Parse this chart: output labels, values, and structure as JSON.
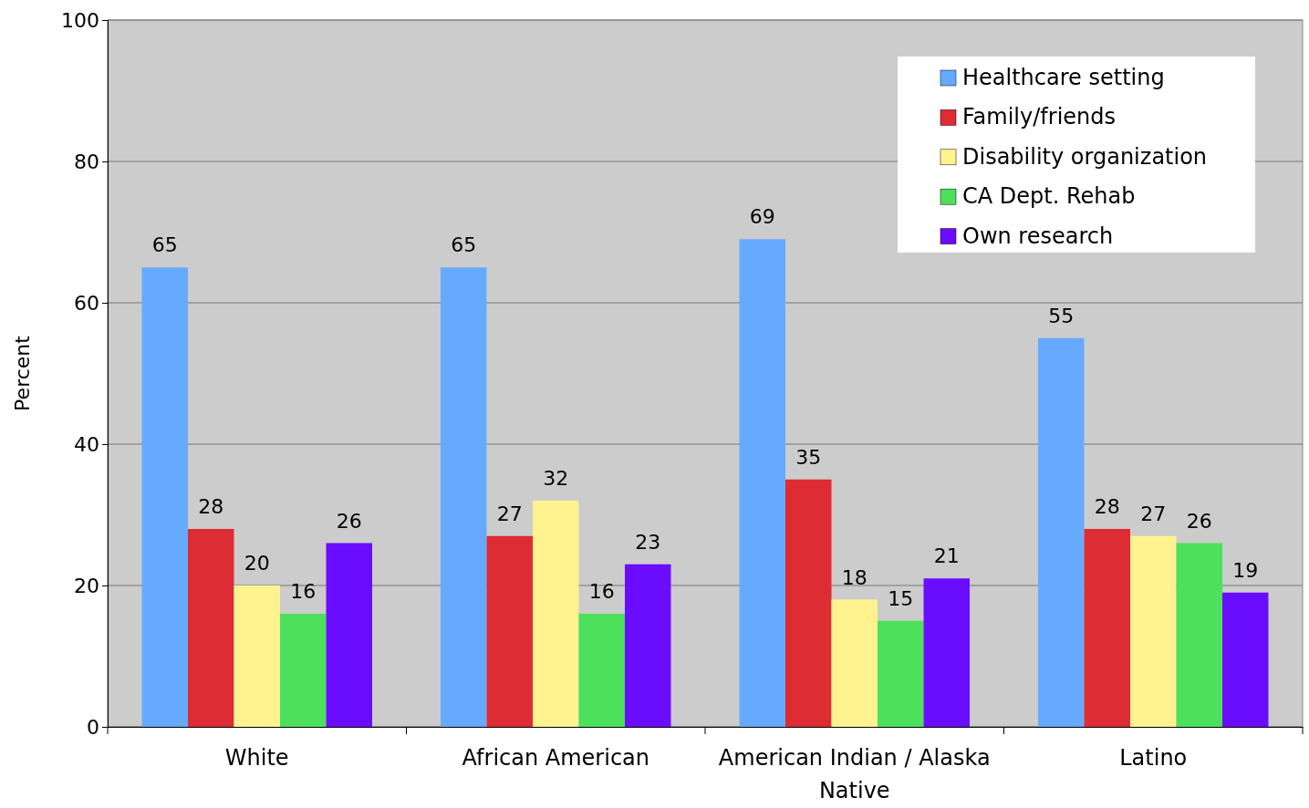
{
  "chart_data": {
    "type": "bar",
    "ylabel": "Percent",
    "categories": [
      "White",
      "African American",
      "American Indian / Alaska Native",
      "Latino"
    ],
    "series": [
      {
        "name": "Healthcare setting",
        "color": "#66aaff",
        "values": [
          65,
          65,
          69,
          55
        ]
      },
      {
        "name": "Family/friends",
        "color": "#dd2c33",
        "values": [
          28,
          27,
          35,
          28
        ]
      },
      {
        "name": "Disability organization",
        "color": "#fff38f",
        "values": [
          20,
          32,
          18,
          27
        ]
      },
      {
        "name": "CA Dept. Rehab",
        "color": "#4de05a",
        "values": [
          16,
          16,
          15,
          26
        ]
      },
      {
        "name": "Own research",
        "color": "#6a0dff",
        "values": [
          26,
          23,
          21,
          19
        ]
      }
    ],
    "ylim": [
      0,
      100
    ],
    "yticks": [
      0,
      20,
      40,
      60,
      80,
      100
    ],
    "grid": "y",
    "legend": "top right",
    "data_labels": true
  }
}
